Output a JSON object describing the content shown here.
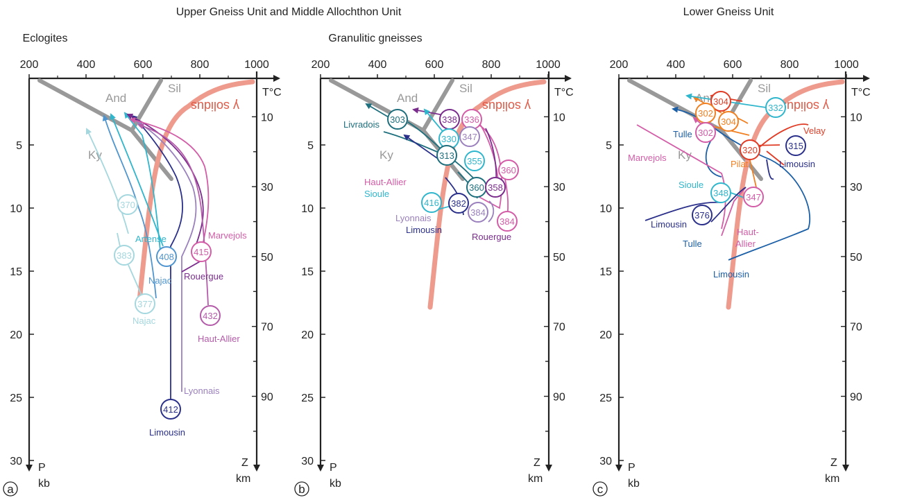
{
  "headings": {
    "group_ab": "Upper Gneiss Unit and Middle Allochthon Unit",
    "group_c": "Lower Gneiss Unit"
  },
  "colors": {
    "axis": "#222222",
    "aluminosilicate": "#999999",
    "solidus": "#ee9a8c",
    "light_cyan": "#a4d7de",
    "cyan": "#2fb6cc",
    "steel_blue": "#4f95cf",
    "navy": "#2a2f8a",
    "blue": "#1b5fa7",
    "teal": "#1e6f7d",
    "magenta": "#d35ca7",
    "purple": "#7a2c8c",
    "lavender": "#9a80bd",
    "orchid": "#b45ba9",
    "red": "#e03c25",
    "orange": "#f08022"
  },
  "axes": {
    "temperature_ticks": [
      "200",
      "400",
      "600",
      "800",
      "1000"
    ],
    "pressure_ticks": [
      "5",
      "10",
      "15",
      "20",
      "25",
      "30"
    ],
    "depth_ticks": [
      "10",
      "30",
      "50",
      "70",
      "90"
    ],
    "t_label": "T°C",
    "p_label": "P",
    "p_unit": "kb",
    "z_label": "Z",
    "z_unit": "km"
  },
  "common_labels": {
    "and": "And",
    "sil": "Sil",
    "ky": "Ky",
    "solidus": "γ solidus"
  },
  "panels": [
    {
      "id": "a",
      "letter": "a",
      "subtitle": "Eclogites",
      "ages": [
        {
          "value": "370",
          "color": "light_cyan"
        },
        {
          "value": "383",
          "color": "light_cyan"
        },
        {
          "value": "377",
          "color": "light_cyan"
        },
        {
          "value": "408",
          "color": "steel_blue"
        },
        {
          "value": "415",
          "color": "magenta"
        },
        {
          "value": "432",
          "color": "orchid"
        },
        {
          "value": "412",
          "color": "navy"
        }
      ],
      "labels": [
        {
          "text": "Artense",
          "color": "cyan"
        },
        {
          "text": "Najac",
          "color": "steel_blue"
        },
        {
          "text": "Najac",
          "color": "light_cyan"
        },
        {
          "text": "Marvejols",
          "color": "magenta"
        },
        {
          "text": "Rouergue",
          "color": "purple"
        },
        {
          "text": "Haut-Allier",
          "color": "orchid"
        },
        {
          "text": "Lyonnais",
          "color": "lavender"
        },
        {
          "text": "Limousin",
          "color": "navy"
        }
      ]
    },
    {
      "id": "b",
      "letter": "b",
      "subtitle": "Granulitic gneisses",
      "ages": [
        {
          "value": "303",
          "color": "teal"
        },
        {
          "value": "338",
          "color": "purple"
        },
        {
          "value": "336",
          "color": "magenta"
        },
        {
          "value": "330",
          "color": "cyan"
        },
        {
          "value": "347",
          "color": "lavender"
        },
        {
          "value": "313",
          "color": "teal"
        },
        {
          "value": "355",
          "color": "cyan"
        },
        {
          "value": "360",
          "color": "magenta"
        },
        {
          "value": "360",
          "color": "teal"
        },
        {
          "value": "358",
          "color": "purple"
        },
        {
          "value": "416",
          "color": "cyan"
        },
        {
          "value": "382",
          "color": "navy"
        },
        {
          "value": "384",
          "color": "lavender"
        },
        {
          "value": "384",
          "color": "magenta"
        }
      ],
      "labels": [
        {
          "text": "Livradois",
          "color": "teal"
        },
        {
          "text": "Haut-Allier",
          "color": "magenta"
        },
        {
          "text": "Sioule",
          "color": "cyan"
        },
        {
          "text": "Lyonnais",
          "color": "lavender"
        },
        {
          "text": "Limousin",
          "color": "navy"
        },
        {
          "text": "Rouergue",
          "color": "purple"
        }
      ]
    },
    {
      "id": "c",
      "letter": "c",
      "subtitle": "",
      "ages": [
        {
          "value": "304",
          "color": "red"
        },
        {
          "value": "302",
          "color": "orange"
        },
        {
          "value": "304",
          "color": "orange"
        },
        {
          "value": "332",
          "color": "cyan"
        },
        {
          "value": "302",
          "color": "magenta"
        },
        {
          "value": "320",
          "color": "red"
        },
        {
          "value": "315",
          "color": "navy"
        },
        {
          "value": "348",
          "color": "cyan"
        },
        {
          "value": "347",
          "color": "magenta"
        },
        {
          "value": "376",
          "color": "navy"
        }
      ],
      "labels": [
        {
          "text": "Tulle",
          "color": "blue"
        },
        {
          "text": "Velay",
          "color": "red"
        },
        {
          "text": "Marvejols",
          "color": "magenta"
        },
        {
          "text": "Pilat",
          "color": "orange"
        },
        {
          "text": "Limousin",
          "color": "navy"
        },
        {
          "text": "Sioule",
          "color": "cyan"
        },
        {
          "text": "Limousin",
          "color": "navy"
        },
        {
          "text": "Tulle",
          "color": "blue"
        },
        {
          "text": "Haut-",
          "color": "magenta"
        },
        {
          "text": "Allier",
          "color": "magenta"
        },
        {
          "text": "Limousin",
          "color": "blue"
        }
      ]
    }
  ]
}
